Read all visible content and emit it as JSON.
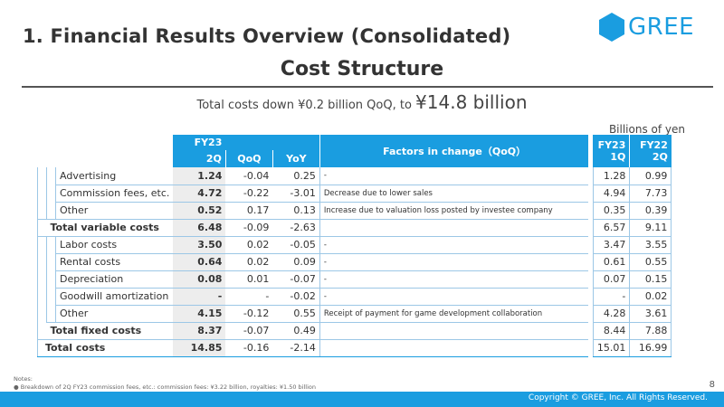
{
  "header": {
    "page_title": "1. Financial Results Overview (Consolidated)",
    "logo_text": "GREE"
  },
  "section_title": "Cost Structure",
  "headline": {
    "prefix": "Total costs down ¥0.2 billion QoQ, to ",
    "amount": "¥14.8 billion"
  },
  "unit_label": "Billions of yen",
  "table": {
    "headers": {
      "fy23_2q": "FY23\n2Q",
      "fy23_2q_l1": "FY23",
      "fy23_2q_l2": "2Q",
      "qoq": "QoQ",
      "yoy": "YoY",
      "factors": "Factors in change（QoQ）",
      "fy23_1q_l1": "FY23",
      "fy23_1q_l2": "1Q",
      "fy22_2q_l1": "FY22",
      "fy22_2q_l2": "2Q"
    },
    "rows": [
      {
        "label": "Advertising",
        "v2q": "1.24",
        "qoq": "-0.04",
        "yoy": "0.25",
        "factor": "-",
        "v1q": "1.28",
        "v22": "0.99"
      },
      {
        "label": "Commission fees, etc.",
        "v2q": "4.72",
        "qoq": "-0.22",
        "yoy": "-3.01",
        "factor": "Decrease due to lower sales",
        "v1q": "4.94",
        "v22": "7.73"
      },
      {
        "label": "Other",
        "v2q": "0.52",
        "qoq": "0.17",
        "yoy": "0.13",
        "factor": "Increase due to valuation loss posted by investee company",
        "v1q": "0.35",
        "v22": "0.39"
      },
      {
        "label": "Total variable costs",
        "v2q": "6.48",
        "qoq": "-0.09",
        "yoy": "-2.63",
        "factor": "",
        "v1q": "6.57",
        "v22": "9.11"
      },
      {
        "label": "Labor costs",
        "v2q": "3.50",
        "qoq": "0.02",
        "yoy": "-0.05",
        "factor": "-",
        "v1q": "3.47",
        "v22": "3.55"
      },
      {
        "label": "Rental costs",
        "v2q": "0.64",
        "qoq": "0.02",
        "yoy": "0.09",
        "factor": "-",
        "v1q": "0.61",
        "v22": "0.55"
      },
      {
        "label": "Depreciation",
        "v2q": "0.08",
        "qoq": "0.01",
        "yoy": "-0.07",
        "factor": "-",
        "v1q": "0.07",
        "v22": "0.15"
      },
      {
        "label": "Goodwill amortization",
        "v2q": "-",
        "qoq": "-",
        "yoy": "-0.02",
        "factor": "-",
        "v1q": "-",
        "v22": "0.02"
      },
      {
        "label": "Other",
        "v2q": "4.15",
        "qoq": "-0.12",
        "yoy": "0.55",
        "factor": "Receipt of payment for game development collaboration",
        "v1q": "4.28",
        "v22": "3.61"
      },
      {
        "label": "Total fixed costs",
        "v2q": "8.37",
        "qoq": "-0.07",
        "yoy": "0.49",
        "factor": "",
        "v1q": "8.44",
        "v22": "7.88"
      },
      {
        "label": "Total costs",
        "v2q": "14.85",
        "qoq": "-0.16",
        "yoy": "-2.14",
        "factor": "",
        "v1q": "15.01",
        "v22": "16.99"
      }
    ]
  },
  "notes": {
    "title": "Notes:",
    "items": [
      "Breakdown of 2Q FY23 commission fees, etc.: commission fees: ¥3.22 billion, royalties: ¥1.50 billion"
    ]
  },
  "page_number": "8",
  "copyright": "Copyright © GREE, Inc. All Rights Reserved.",
  "colors": {
    "accent": "#1a9de0",
    "row_rule": "#9cc7e6",
    "highlight_col": "#ededed"
  }
}
